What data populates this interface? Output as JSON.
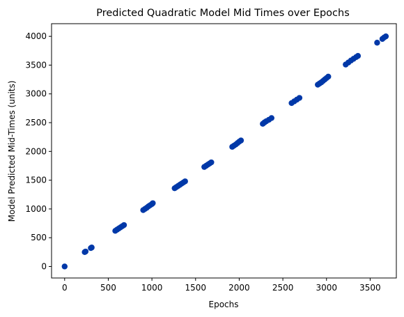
{
  "chart_data": {
    "type": "scatter",
    "title": "Predicted Quadratic Model Mid Times over Epochs",
    "xlabel": "Epochs",
    "ylabel": "Model Predicted Mid-Times (units)",
    "xlim": [
      -150,
      3800
    ],
    "ylim": [
      -200,
      4220
    ],
    "xticks": [
      0,
      500,
      1000,
      1500,
      2000,
      2500,
      3000,
      3500
    ],
    "yticks": [
      0,
      500,
      1000,
      1500,
      2000,
      2500,
      3000,
      3500,
      4000
    ],
    "grid": false,
    "marker_color": "#0038a8",
    "series": [
      {
        "x": [
          0,
          230,
          240,
          300,
          310,
          580,
          600,
          620,
          640,
          660,
          680,
          900,
          920,
          940,
          960,
          980,
          1000,
          1010,
          1260,
          1280,
          1300,
          1320,
          1340,
          1360,
          1380,
          1600,
          1620,
          1640,
          1660,
          1680,
          1920,
          1940,
          1960,
          1980,
          2000,
          2020,
          2270,
          2290,
          2310,
          2340,
          2370,
          2600,
          2630,
          2660,
          2690,
          2900,
          2920,
          2940,
          2960,
          2980,
          3000,
          3020,
          3220,
          3250,
          3280,
          3310,
          3340,
          3360,
          3580,
          3640,
          3660,
          3680
        ],
        "y": [
          0,
          250,
          260,
          320,
          330,
          620,
          640,
          660,
          680,
          700,
          720,
          980,
          1000,
          1020,
          1045,
          1065,
          1085,
          1100,
          1360,
          1380,
          1400,
          1420,
          1440,
          1460,
          1480,
          1730,
          1750,
          1770,
          1790,
          1810,
          2080,
          2100,
          2120,
          2145,
          2170,
          2190,
          2480,
          2505,
          2525,
          2550,
          2580,
          2840,
          2870,
          2900,
          2930,
          3160,
          3180,
          3200,
          3225,
          3250,
          3275,
          3300,
          3510,
          3545,
          3580,
          3610,
          3640,
          3660,
          3890,
          3955,
          3980,
          4000
        ]
      }
    ]
  }
}
